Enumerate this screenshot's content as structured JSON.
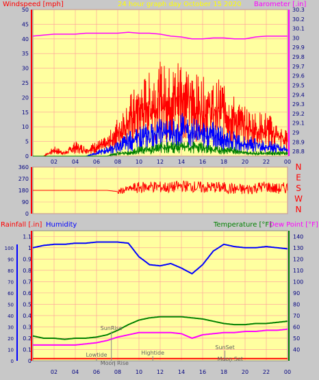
{
  "header": {
    "wind_title": "Windspeed [mph]",
    "date_title": "24 hour graph day   October 15 2020",
    "baro_title": "Barometer [.in]"
  },
  "bottom_header": {
    "rain_title": "Rainfall [.in]",
    "humidity_title": "Humidity",
    "temp_title": "Temperature [°F]",
    "dew_title": "Dew Point [°F]"
  },
  "colors": {
    "plot_bg": "#ffffa0",
    "frame_bg": "#c8c8c8",
    "wind_max": "#ff0000",
    "wind_avg": "#0000ff",
    "wind_min": "#008000",
    "barometer": "#ff00ff",
    "direction": "#ff0000",
    "humidity": "#0000ff",
    "temperature": "#008000",
    "dewpoint": "#ff00ff",
    "rain": "#ff0000",
    "axis_red": "#ff0000",
    "axis_magenta": "#ff00ff",
    "axis_blue": "#0000ff",
    "axis_green": "#008000"
  },
  "chart_data": [
    {
      "type": "line",
      "title": "24 hour graph day   October 15 2020",
      "x_ticks": [
        "02",
        "04",
        "06",
        "08",
        "10",
        "12",
        "14",
        "16",
        "18",
        "20",
        "22",
        "00"
      ],
      "y_left_label": "Windspeed [mph]",
      "y_left_ticks": [
        0,
        5,
        10,
        15,
        20,
        25,
        30,
        35,
        40,
        45,
        50
      ],
      "y_left_lim": [
        0,
        50
      ],
      "y_right_label": "Barometer [.in]",
      "y_right_ticks": [
        "28.8",
        "28.9",
        "29",
        "29.1",
        "29.2",
        "29.3",
        "29.4",
        "29.5",
        "29.6",
        "29.7",
        "29.8",
        "29.9",
        "30",
        "30.1",
        "30.2",
        "30.3"
      ],
      "y_right_lim": [
        28.75,
        30.3
      ],
      "hours": [
        0,
        1,
        2,
        3,
        4,
        5,
        6,
        7,
        8,
        9,
        10,
        11,
        12,
        13,
        14,
        15,
        16,
        17,
        18,
        19,
        20,
        21,
        22,
        23,
        24
      ],
      "series": [
        {
          "axis": "left",
          "values": [
            0,
            0,
            2,
            1,
            3,
            2,
            3,
            4,
            8,
            12,
            15,
            17,
            19,
            18,
            21,
            17,
            16,
            15,
            16,
            12,
            10,
            9,
            9,
            7,
            5
          ]
        },
        {
          "axis": "left",
          "values": [
            0,
            0,
            0,
            0,
            0,
            0,
            1,
            2,
            3,
            5,
            6,
            7,
            8,
            8,
            9,
            8,
            7,
            7,
            6,
            5,
            4,
            4,
            3,
            3,
            2
          ]
        },
        {
          "axis": "left",
          "values": [
            0,
            0,
            0,
            0,
            0,
            0,
            0,
            0,
            1,
            1,
            2,
            2,
            3,
            3,
            3,
            3,
            3,
            2,
            2,
            2,
            1,
            1,
            1,
            1,
            1
          ]
        },
        {
          "axis": "right",
          "values": [
            30.02,
            30.03,
            30.04,
            30.04,
            30.04,
            30.05,
            30.05,
            30.05,
            30.05,
            30.06,
            30.05,
            30.05,
            30.04,
            30.02,
            30.01,
            29.99,
            29.99,
            30.0,
            30.0,
            29.99,
            29.99,
            30.01,
            30.02,
            30.02,
            30.02
          ]
        }
      ]
    },
    {
      "type": "line",
      "y_left_ticks": [
        0,
        90,
        180,
        270,
        360
      ],
      "y_left_lim": [
        0,
        360
      ],
      "y_right_ticks": [
        "N",
        "W",
        "S",
        "E",
        "N"
      ],
      "hours": [
        0,
        1,
        2,
        3,
        4,
        5,
        6,
        7,
        8,
        9,
        10,
        11,
        12,
        13,
        14,
        15,
        16,
        17,
        18,
        19,
        20,
        21,
        22,
        23,
        24
      ],
      "series": [
        {
          "axis": "left",
          "values": [
            180,
            180,
            180,
            180,
            180,
            180,
            180,
            180,
            170,
            190,
            200,
            210,
            205,
            200,
            215,
            210,
            200,
            205,
            200,
            190,
            185,
            200,
            210,
            190,
            200
          ]
        }
      ]
    },
    {
      "type": "line",
      "x_ticks": [
        "02",
        "04",
        "06",
        "08",
        "10",
        "12",
        "14",
        "16",
        "18",
        "20",
        "22",
        "00"
      ],
      "y_left_ticks_humidity": [
        0,
        10,
        20,
        30,
        40,
        50,
        60,
        70,
        80,
        90,
        100
      ],
      "y_left_ticks_rain": [
        "0",
        "0.1",
        "0.2",
        "0.3",
        "0.4",
        "0.5",
        "0.6",
        "0.7",
        "0.8",
        "0.9",
        "1",
        "1.1"
      ],
      "y_right_ticks": [
        40,
        50,
        60,
        70,
        80,
        90,
        100,
        110,
        120,
        130,
        140
      ],
      "y_left_lim": [
        0,
        1.15
      ],
      "y_right_lim": [
        30,
        145
      ],
      "hours": [
        0,
        1,
        2,
        3,
        4,
        5,
        6,
        7,
        8,
        9,
        10,
        11,
        12,
        13,
        14,
        15,
        16,
        17,
        18,
        19,
        20,
        21,
        22,
        23,
        24
      ],
      "series": [
        {
          "name": "Humidity",
          "axis": "right",
          "values": [
            130,
            132,
            133,
            133,
            134,
            134,
            135,
            135,
            135,
            134,
            122,
            115,
            114,
            116,
            112,
            107,
            115,
            127,
            133,
            131,
            130,
            130,
            131,
            130,
            129
          ]
        },
        {
          "name": "Temperature [°F]",
          "axis": "right",
          "values": [
            52,
            50,
            50,
            49,
            50,
            50,
            51,
            53,
            57,
            62,
            66,
            68,
            69,
            69,
            69,
            68,
            67,
            65,
            63,
            62,
            62,
            63,
            63,
            64,
            65
          ]
        },
        {
          "name": "Dew Point [°F]",
          "axis": "right",
          "values": [
            44,
            44,
            44,
            44,
            44,
            45,
            46,
            48,
            51,
            53,
            55,
            55,
            55,
            55,
            54,
            50,
            53,
            54,
            55,
            55,
            56,
            56,
            57,
            57,
            58
          ]
        },
        {
          "name": "Rainfall [.in]",
          "axis": "left",
          "values": [
            0.02,
            0.02,
            0.02,
            0.02,
            0.02,
            0.02,
            0.02,
            0.02,
            0.02,
            0.02,
            0.02,
            0.02,
            0.02,
            0.02,
            0.02,
            0.02,
            0.02,
            0.02,
            0.02,
            0.02,
            0.02,
            0.02,
            0.02,
            0.02,
            0.02
          ]
        }
      ],
      "annotations": [
        {
          "text": "Lowtide",
          "hour": 6.0
        },
        {
          "text": "Moon Rise",
          "hour": 7.7
        },
        {
          "text": "SunRise",
          "hour": 7.4
        },
        {
          "text": "Hightide",
          "hour": 11.3
        },
        {
          "text": "SunSet",
          "hour": 18.1
        },
        {
          "text": "Moon Set",
          "hour": 18.6
        }
      ]
    }
  ]
}
